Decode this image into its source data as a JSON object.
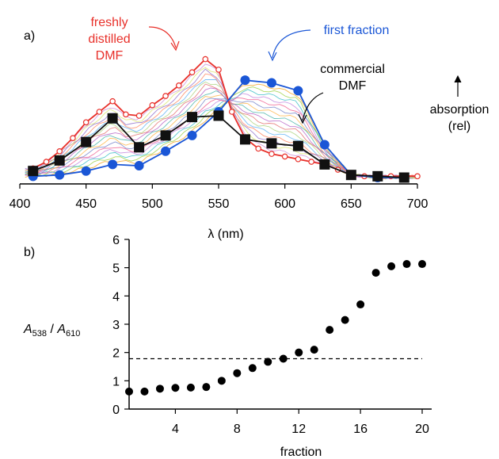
{
  "chart_data": [
    {
      "panel": "a)",
      "type": "line",
      "xlabel": "λ (nm)",
      "ylabel": "absorption\n(rel)",
      "xlim": [
        400,
        700
      ],
      "ylim": [
        0,
        1
      ],
      "xticks": [
        400,
        450,
        500,
        550,
        600,
        650,
        700
      ],
      "annotations": {
        "fresh": [
          "freshly",
          "distilled",
          "DMF"
        ],
        "first": "first fraction",
        "commercial": [
          "commercial",
          "DMF"
        ]
      },
      "series": [
        {
          "name": "freshly distilled DMF",
          "color": "#e8302a",
          "marker": "open-circle",
          "x": [
            410,
            420,
            430,
            440,
            450,
            460,
            470,
            480,
            490,
            500,
            510,
            520,
            530,
            540,
            550,
            560,
            570,
            580,
            590,
            600,
            610,
            620,
            630,
            640,
            650,
            660,
            670,
            680,
            690,
            700
          ],
          "y": [
            0.07,
            0.12,
            0.2,
            0.3,
            0.42,
            0.5,
            0.58,
            0.48,
            0.47,
            0.55,
            0.62,
            0.7,
            0.8,
            0.9,
            0.82,
            0.5,
            0.3,
            0.22,
            0.18,
            0.16,
            0.14,
            0.12,
            0.1,
            0.06,
            0.02,
            0.01,
            0.01,
            0.01,
            0.01,
            0.01
          ]
        },
        {
          "name": "first fraction",
          "color": "#1a56d6",
          "marker": "filled-circle",
          "x": [
            410,
            430,
            450,
            470,
            490,
            510,
            530,
            550,
            570,
            590,
            610,
            630,
            650,
            670,
            690
          ],
          "y": [
            0.01,
            0.02,
            0.05,
            0.1,
            0.09,
            0.2,
            0.32,
            0.5,
            0.74,
            0.72,
            0.66,
            0.25,
            0.02,
            0.0,
            0.0
          ]
        },
        {
          "name": "commercial DMF",
          "color": "#111111",
          "marker": "filled-square",
          "x": [
            410,
            430,
            450,
            470,
            490,
            510,
            530,
            550,
            570,
            590,
            610,
            630,
            650,
            670,
            690
          ],
          "y": [
            0.05,
            0.13,
            0.27,
            0.45,
            0.23,
            0.32,
            0.46,
            0.47,
            0.29,
            0.26,
            0.24,
            0.1,
            0.02,
            0.01,
            0.0
          ]
        }
      ]
    },
    {
      "panel": "b)",
      "type": "scatter",
      "xlabel": "fraction",
      "ylabel": "A538 / A610",
      "xlim": [
        1,
        20
      ],
      "ylim": [
        0,
        6
      ],
      "xticks": [
        4,
        8,
        12,
        16,
        20
      ],
      "yticks": [
        0,
        1,
        2,
        3,
        4,
        5,
        6
      ],
      "reference_line_y": 1.78,
      "x": [
        1,
        2,
        3,
        4,
        5,
        6,
        7,
        8,
        9,
        10,
        11,
        12,
        13,
        14,
        15,
        16,
        17,
        18,
        19,
        20
      ],
      "y": [
        0.62,
        0.62,
        0.72,
        0.75,
        0.76,
        0.78,
        1.0,
        1.27,
        1.45,
        1.67,
        1.78,
        2.0,
        2.1,
        2.8,
        3.15,
        3.7,
        4.82,
        5.05,
        5.13,
        5.13
      ]
    }
  ]
}
